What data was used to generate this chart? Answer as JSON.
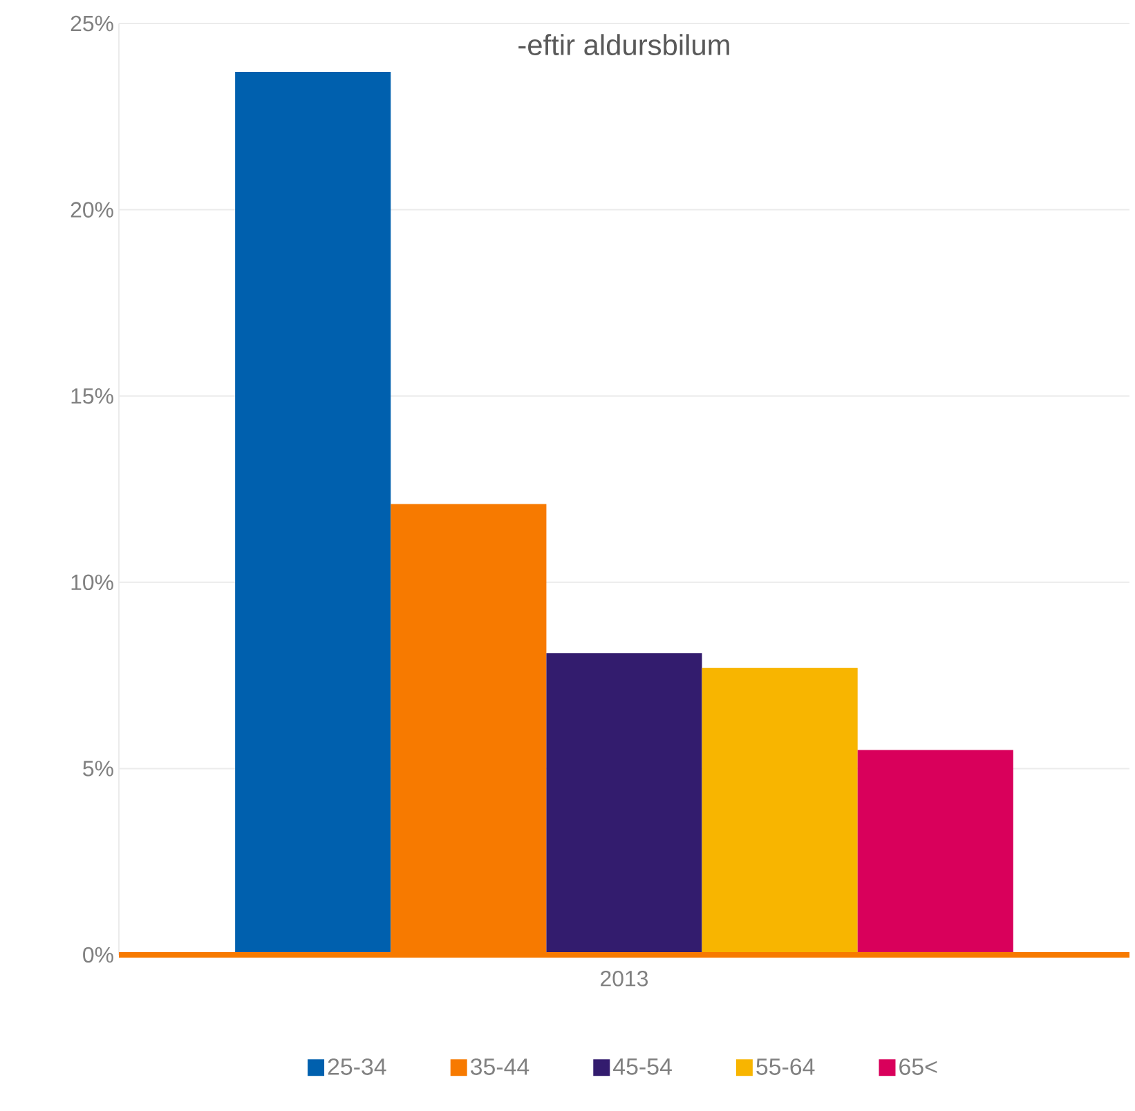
{
  "chart_data": {
    "type": "bar",
    "title": "-eftir aldursbilum",
    "categories": [
      "2013"
    ],
    "series": [
      {
        "name": "25-34",
        "color": "#0060ae",
        "values": [
          23.7
        ]
      },
      {
        "name": "35-44",
        "color": "#f77a00",
        "values": [
          12.1
        ]
      },
      {
        "name": "45-54",
        "color": "#331c6e",
        "values": [
          8.1
        ]
      },
      {
        "name": "55-64",
        "color": "#f8b500",
        "values": [
          7.7
        ]
      },
      {
        "name": "65<",
        "color": "#d9005b",
        "values": [
          5.5
        ]
      }
    ],
    "ylim": [
      0,
      25
    ],
    "yticks": [
      {
        "value": 0,
        "label": "0%"
      },
      {
        "value": 5,
        "label": "5%"
      },
      {
        "value": 10,
        "label": "10%"
      },
      {
        "value": 15,
        "label": "15%"
      },
      {
        "value": 20,
        "label": "20%"
      },
      {
        "value": 25,
        "label": "25%"
      }
    ],
    "grid": "y",
    "legend": "bottom"
  }
}
